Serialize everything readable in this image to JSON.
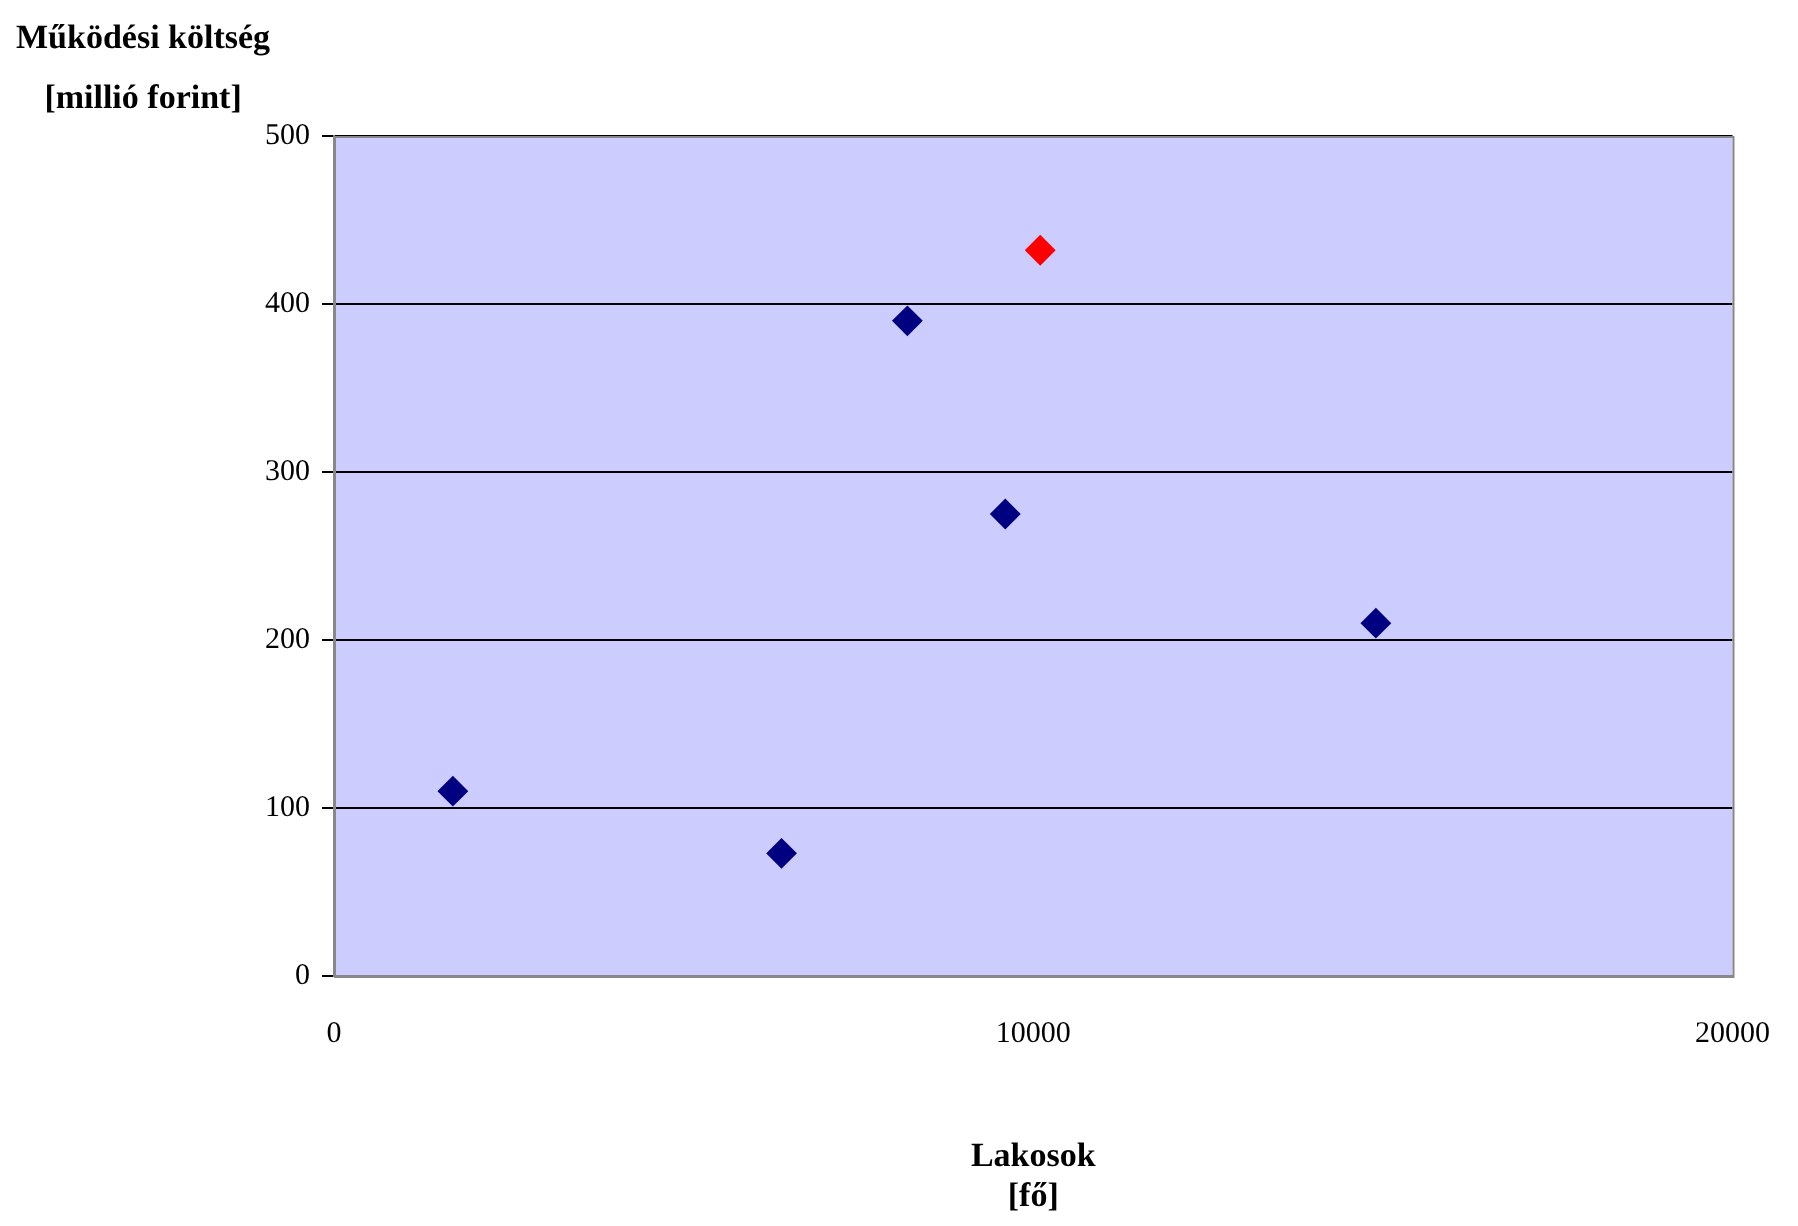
{
  "chart_data": {
    "type": "scatter",
    "xlabel": "Lakosok\n[fő]",
    "ylabel": "Működési költség\n[millió forint]",
    "xlim": [
      0,
      20000
    ],
    "xticks": [
      0,
      10000,
      20000
    ],
    "ylim": [
      0,
      500
    ],
    "yticks": [
      0,
      100,
      200,
      300,
      400,
      500
    ],
    "grid": "y",
    "marker": "diamond",
    "legend": false,
    "series": [
      {
        "color": "#000080",
        "x": [
          1700,
          6400,
          8200,
          9600,
          14900
        ],
        "values": [
          110,
          73,
          390,
          275,
          210
        ]
      },
      {
        "color": "#ff0000",
        "x": [
          10100
        ],
        "values": [
          432
        ]
      }
    ]
  }
}
